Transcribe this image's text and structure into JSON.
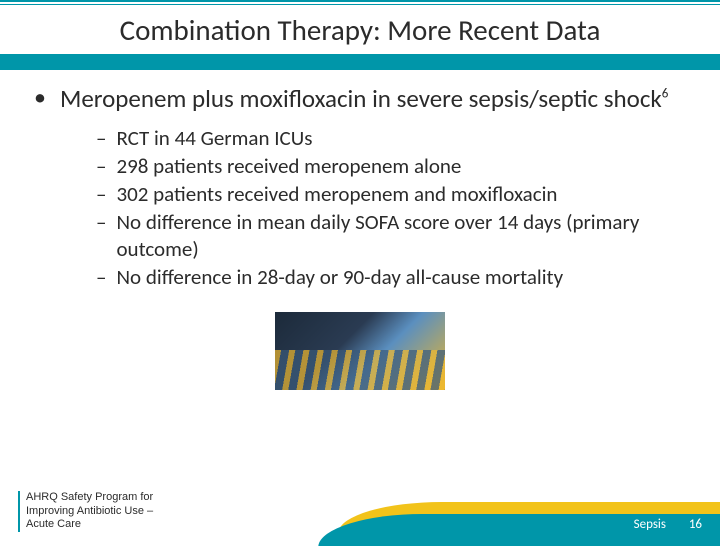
{
  "title": "Combination Therapy: More Recent Data",
  "main_bullet": {
    "text_pre": "Meropenem plus moxifloxacin in severe sepsis/septic shock",
    "sup": "6"
  },
  "sub_bullets": [
    "RCT in 44 German ICUs",
    "298 patients received meropenem alone",
    "302 patients received meropenem and moxifloxacin",
    "No difference in mean daily SOFA score over 14 days (primary outcome)",
    "No difference in 28-day or 90-day all-cause mortality"
  ],
  "footer": {
    "program_line1": "AHRQ Safety Program for",
    "program_line2": "Improving Antibiotic Use –",
    "program_line3": "Acute Care",
    "topic": "Sepsis",
    "slide_num": "16"
  },
  "colors": {
    "teal": "#0096a9",
    "yellow": "#f2c31a",
    "text": "#2b2b2b",
    "white": "#ffffff"
  }
}
